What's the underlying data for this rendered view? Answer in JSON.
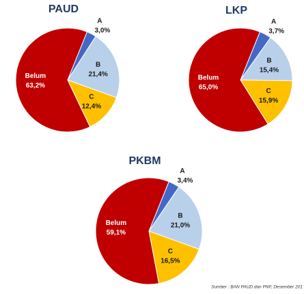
{
  "chart_data": [
    {
      "type": "pie",
      "title": "PAUD",
      "categories": [
        "A",
        "B",
        "C",
        "Belum"
      ],
      "values": [
        3.0,
        21.4,
        12.4,
        63.2
      ],
      "value_labels": [
        "3,0%",
        "21,4%",
        "12,4%",
        "63,2%"
      ],
      "colors": [
        "#4468c8",
        "#b9d0ea",
        "#ffc000",
        "#c00000"
      ]
    },
    {
      "type": "pie",
      "title": "LKP",
      "categories": [
        "A",
        "B",
        "C",
        "Belum"
      ],
      "values": [
        3.7,
        15.4,
        15.9,
        65.0
      ],
      "value_labels": [
        "3,7%",
        "15,4%",
        "15,9%",
        "65,0%"
      ],
      "colors": [
        "#4468c8",
        "#b9d0ea",
        "#ffc000",
        "#c00000"
      ]
    },
    {
      "type": "pie",
      "title": "PKBM",
      "categories": [
        "A",
        "B",
        "C",
        "Belum"
      ],
      "values": [
        3.4,
        21.0,
        16.5,
        59.1
      ],
      "value_labels": [
        "3,4%",
        "21,0%",
        "16,5%",
        "59,1%"
      ],
      "colors": [
        "#4468c8",
        "#b9d0ea",
        "#ffc000",
        "#c00000"
      ]
    }
  ],
  "source": "Sumber : BAN PAUD dan PNF, Desember 201"
}
